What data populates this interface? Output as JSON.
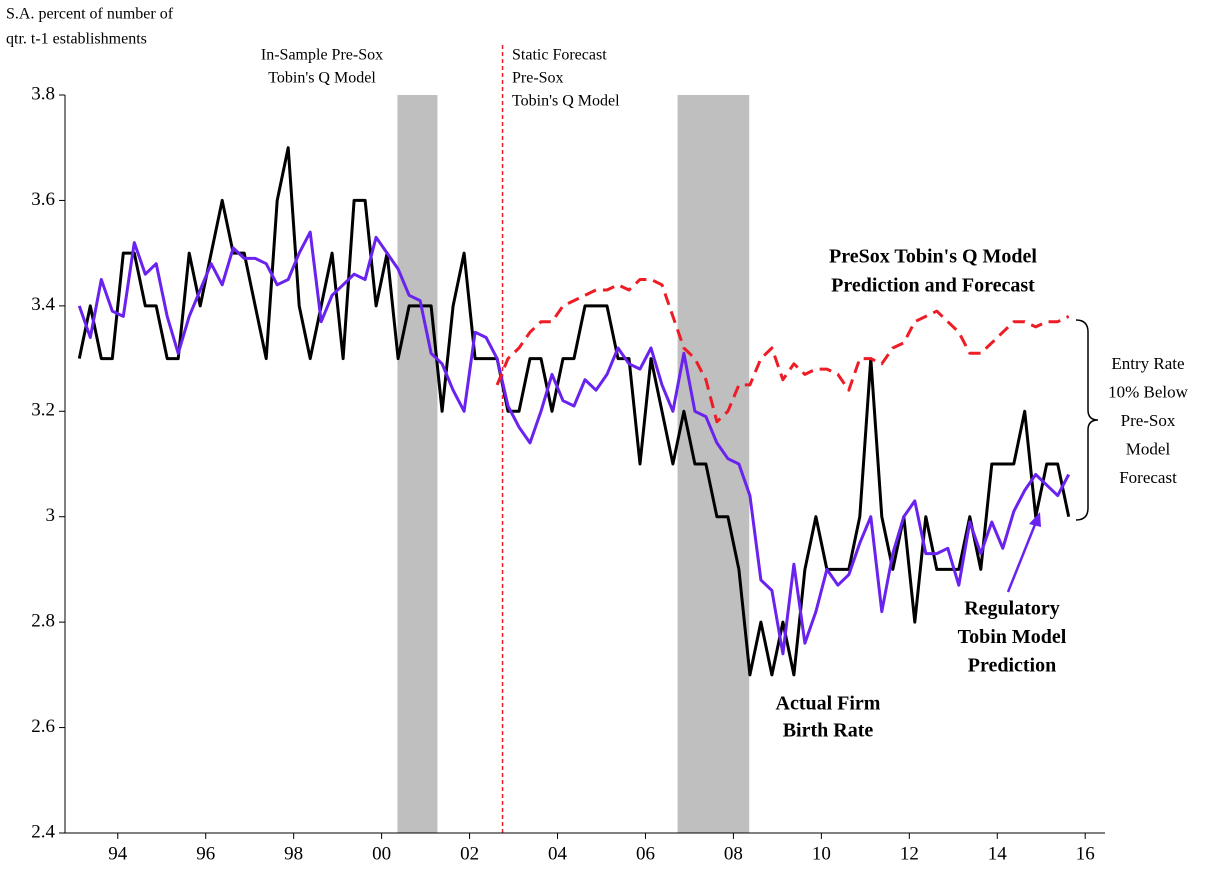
{
  "chart_data": {
    "type": "line",
    "y_axis_label": [
      "S.A. percent of number of",
      "qtr. t-1 establishments"
    ],
    "x": [
      1993.125,
      1993.375,
      1993.625,
      1993.875,
      1994.125,
      1994.375,
      1994.625,
      1994.875,
      1995.125,
      1995.375,
      1995.625,
      1995.875,
      1996.125,
      1996.375,
      1996.625,
      1996.875,
      1997.125,
      1997.375,
      1997.625,
      1997.875,
      1998.125,
      1998.375,
      1998.625,
      1998.875,
      1999.125,
      1999.375,
      1999.625,
      1999.875,
      2000.125,
      2000.375,
      2000.625,
      2000.875,
      2001.125,
      2001.375,
      2001.625,
      2001.875,
      2002.125,
      2002.375,
      2002.625,
      2002.875,
      2003.125,
      2003.375,
      2003.625,
      2003.875,
      2004.125,
      2004.375,
      2004.625,
      2004.875,
      2005.125,
      2005.375,
      2005.625,
      2005.875,
      2006.125,
      2006.375,
      2006.625,
      2006.875,
      2007.125,
      2007.375,
      2007.625,
      2007.875,
      2008.125,
      2008.375,
      2008.625,
      2008.875,
      2009.125,
      2009.375,
      2009.625,
      2009.875,
      2010.125,
      2010.375,
      2010.625,
      2010.875,
      2011.125,
      2011.375,
      2011.625,
      2011.875,
      2012.125,
      2012.375,
      2012.625,
      2012.875,
      2013.125,
      2013.375,
      2013.625,
      2013.875,
      2014.125,
      2014.375,
      2014.625,
      2014.875,
      2015.125,
      2015.375,
      2015.625
    ],
    "series": [
      {
        "name": "Actual Firm Birth Rate",
        "color": "#000000",
        "dash": false,
        "values": [
          3.3,
          3.4,
          3.3,
          3.3,
          3.5,
          3.5,
          3.4,
          3.4,
          3.3,
          3.3,
          3.5,
          3.4,
          3.5,
          3.6,
          3.5,
          3.5,
          3.4,
          3.3,
          3.6,
          3.7,
          3.4,
          3.3,
          3.4,
          3.5,
          3.3,
          3.6,
          3.6,
          3.4,
          3.5,
          3.3,
          3.4,
          3.4,
          3.4,
          3.2,
          3.4,
          3.5,
          3.3,
          3.3,
          3.3,
          3.2,
          3.2,
          3.3,
          3.3,
          3.2,
          3.3,
          3.3,
          3.4,
          3.4,
          3.4,
          3.3,
          3.3,
          3.1,
          3.3,
          3.2,
          3.1,
          3.2,
          3.1,
          3.1,
          3.0,
          3.0,
          2.9,
          2.7,
          2.8,
          2.7,
          2.8,
          2.7,
          2.9,
          3.0,
          2.9,
          2.9,
          2.9,
          3.0,
          3.3,
          3.0,
          2.9,
          3.0,
          2.8,
          3.0,
          2.9,
          2.9,
          2.9,
          3.0,
          2.9,
          3.1,
          3.1,
          3.1,
          3.2,
          3.0,
          3.1,
          3.1,
          3.0
        ]
      },
      {
        "name": "Regulatory Tobin Model Prediction",
        "color": "#6a22ee",
        "dash": false,
        "values": [
          3.4,
          3.34,
          3.45,
          3.39,
          3.38,
          3.52,
          3.46,
          3.48,
          3.38,
          3.31,
          3.38,
          3.43,
          3.48,
          3.44,
          3.51,
          3.49,
          3.49,
          3.48,
          3.44,
          3.45,
          3.5,
          3.54,
          3.37,
          3.42,
          3.44,
          3.46,
          3.45,
          3.53,
          3.5,
          3.47,
          3.42,
          3.41,
          3.31,
          3.29,
          3.24,
          3.2,
          3.35,
          3.34,
          3.3,
          3.21,
          3.17,
          3.14,
          3.2,
          3.27,
          3.22,
          3.21,
          3.26,
          3.24,
          3.27,
          3.32,
          3.29,
          3.28,
          3.32,
          3.25,
          3.2,
          3.31,
          3.2,
          3.19,
          3.14,
          3.11,
          3.1,
          3.04,
          2.88,
          2.86,
          2.74,
          2.91,
          2.76,
          2.82,
          2.9,
          2.87,
          2.89,
          2.95,
          3.0,
          2.82,
          2.93,
          3.0,
          3.03,
          2.93,
          2.93,
          2.94,
          2.87,
          2.99,
          2.93,
          2.99,
          2.94,
          3.01,
          3.05,
          3.08,
          3.06,
          3.04,
          3.08
        ]
      },
      {
        "name": "PreSox Tobin's Q Model Prediction and Forecast",
        "color": "#ee1c25",
        "dash": true,
        "values": [
          null,
          null,
          null,
          null,
          null,
          null,
          null,
          null,
          null,
          null,
          null,
          null,
          null,
          null,
          null,
          null,
          null,
          null,
          null,
          null,
          null,
          null,
          null,
          null,
          null,
          null,
          null,
          null,
          null,
          null,
          null,
          null,
          null,
          null,
          null,
          null,
          null,
          null,
          3.25,
          3.3,
          3.32,
          3.35,
          3.37,
          3.37,
          3.4,
          3.41,
          3.42,
          3.43,
          3.43,
          3.44,
          3.43,
          3.45,
          3.45,
          3.44,
          3.38,
          3.32,
          3.3,
          3.26,
          3.18,
          3.2,
          3.25,
          3.25,
          3.3,
          3.32,
          3.26,
          3.29,
          3.27,
          3.28,
          3.28,
          3.27,
          3.24,
          3.3,
          3.3,
          3.29,
          3.32,
          3.33,
          3.37,
          3.38,
          3.39,
          3.37,
          3.35,
          3.31,
          3.31,
          3.33,
          3.35,
          3.37,
          3.37,
          3.36,
          3.37,
          3.37,
          3.38
        ]
      }
    ],
    "shaded_regions": [
      {
        "start": 2000.36,
        "end": 2001.27,
        "color": "#bfbfbf"
      },
      {
        "start": 2006.73,
        "end": 2008.36,
        "color": "#bfbfbf"
      }
    ],
    "forecast_start": 2002.75,
    "annotations": [
      {
        "lines": [
          "In-Sample Pre-Sox",
          "Tobin's Q Model"
        ],
        "color": "#ee1c25",
        "bold": false
      },
      {
        "lines": [
          "Static Forecast",
          "Pre-Sox",
          "Tobin's Q Model"
        ],
        "color": "#ee1c25",
        "bold": false
      },
      {
        "lines": [
          "PreSox Tobin's Q Model",
          "Prediction and Forecast"
        ],
        "color": "#ee1c25",
        "bold": true
      },
      {
        "lines": [
          "Entry Rate",
          "10% Below",
          "Pre-Sox",
          "Model",
          "Forecast"
        ],
        "color": "#000000",
        "bold": false
      },
      {
        "lines": [
          "Regulatory",
          "Tobin Model",
          "Prediction"
        ],
        "color": "#6a22ee",
        "bold": true
      },
      {
        "lines": [
          "Actual Firm",
          "Birth Rate"
        ],
        "color": "#000000",
        "bold": true
      }
    ],
    "xlim": [
      1992.8,
      2016.45
    ],
    "xticks": [
      {
        "value": 1994,
        "label": "94"
      },
      {
        "value": 1996,
        "label": "96"
      },
      {
        "value": 1998,
        "label": "98"
      },
      {
        "value": 2000,
        "label": "00"
      },
      {
        "value": 2002,
        "label": "02"
      },
      {
        "value": 2004,
        "label": "04"
      },
      {
        "value": 2006,
        "label": "06"
      },
      {
        "value": 2008,
        "label": "08"
      },
      {
        "value": 2010,
        "label": "10"
      },
      {
        "value": 2012,
        "label": "12"
      },
      {
        "value": 2014,
        "label": "14"
      },
      {
        "value": 2016,
        "label": "16"
      }
    ],
    "ylim": [
      2.4,
      3.8
    ],
    "yticks": [
      2.4,
      2.6,
      2.8,
      3,
      3.2,
      3.4,
      3.6,
      3.8
    ],
    "grid": false
  }
}
